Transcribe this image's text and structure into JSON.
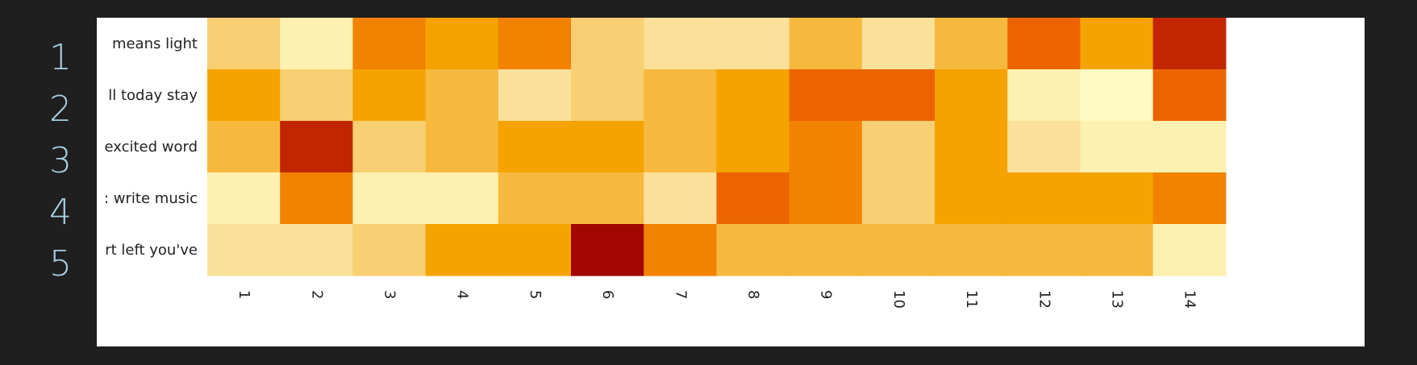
{
  "row_numbers": [
    "1",
    "2",
    "3",
    "4",
    "5"
  ],
  "chart_data": {
    "type": "heatmap",
    "rows": [
      "means light",
      "ll today stay",
      "excited word",
      ": write music",
      "rt left you've"
    ],
    "columns": [
      "1",
      "2",
      "3",
      "4",
      "5",
      "6",
      "7",
      "8",
      "9",
      "10",
      "11",
      "12",
      "13",
      "14"
    ],
    "values": [
      [
        3,
        1,
        6,
        5,
        6,
        3,
        2,
        2,
        4,
        2,
        4,
        7,
        5,
        9
      ],
      [
        5,
        3,
        5,
        4,
        2,
        3,
        4,
        5,
        7,
        7,
        5,
        1,
        0,
        7
      ],
      [
        4,
        9,
        3,
        4,
        5,
        5,
        4,
        5,
        6,
        3,
        5,
        2,
        1,
        1
      ],
      [
        1,
        6,
        1,
        1,
        4,
        4,
        2,
        7,
        6,
        3,
        5,
        5,
        5,
        6
      ],
      [
        2,
        2,
        3,
        5,
        5,
        10,
        6,
        4,
        4,
        4,
        4,
        4,
        4,
        1
      ]
    ],
    "value_range": [
      0,
      10
    ],
    "colors": [
      "#fff9c4",
      "#fdf0b0",
      "#fbe09a",
      "#f8cf72",
      "#f6b93e",
      "#f5a300",
      "#f28300",
      "#ec6400",
      "#d64300",
      "#c22600",
      "#a10700"
    ],
    "grid": false,
    "legend": "none"
  }
}
